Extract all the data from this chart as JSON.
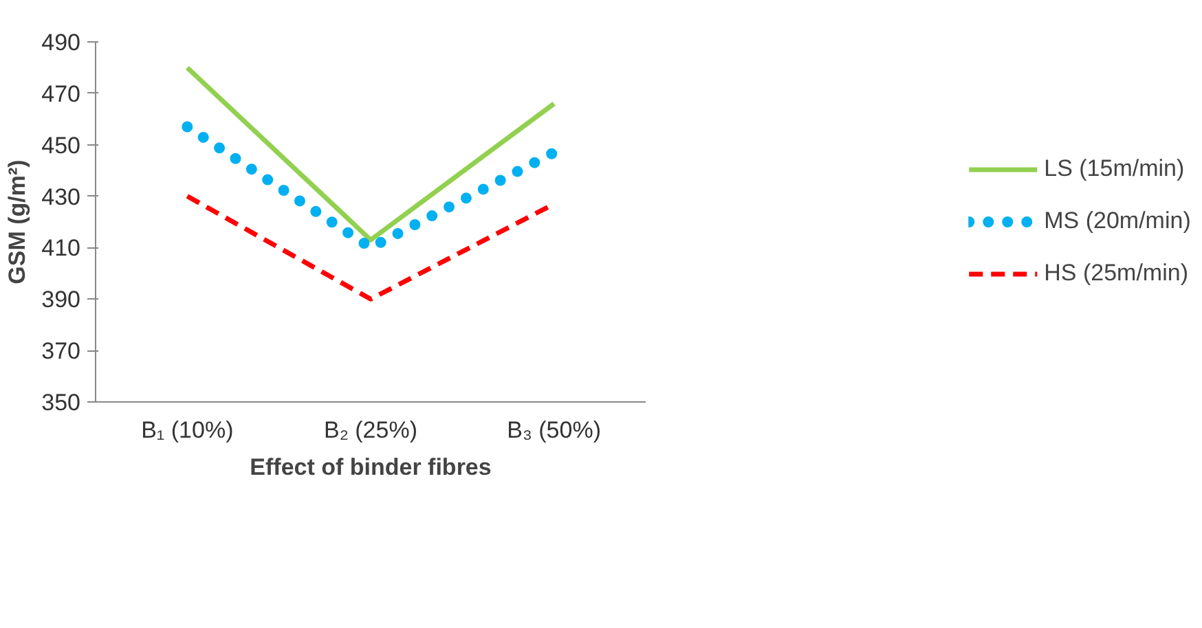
{
  "chart_data": {
    "type": "line",
    "xlabel": "Effect of binder fibres",
    "ylabel": "GSM (g/m²)",
    "categories": [
      "B₁ (10%)",
      "B₂ (25%)",
      "B₃ (50%)"
    ],
    "series": [
      {
        "name": "LS (15m/min)",
        "color": "#92d050",
        "values": [
          480,
          413,
          466
        ],
        "line_style": "solid"
      },
      {
        "name": "MS (20m/min)",
        "color": "#00b0f0",
        "values": [
          457,
          410,
          447
        ],
        "line_style": "dotted"
      },
      {
        "name": "HS (25m/min)",
        "color": "#ff0000",
        "values": [
          430,
          390,
          427
        ],
        "line_style": "dashed"
      }
    ],
    "ylim": [
      350,
      490
    ],
    "yticks": [
      350,
      370,
      390,
      410,
      430,
      450,
      470,
      490
    ],
    "grid": false,
    "legend": "right",
    "marker": "none"
  }
}
